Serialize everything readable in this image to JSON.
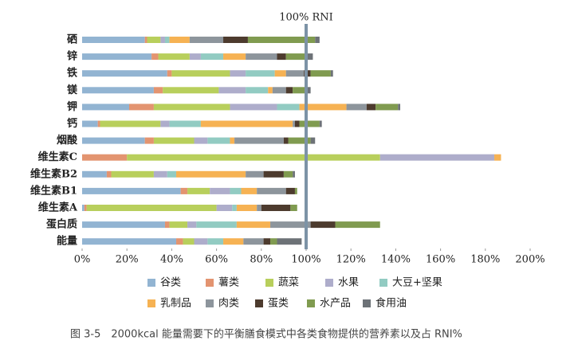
{
  "chart_data": {
    "type": "stacked-bar-horizontal",
    "caption": "图 3-5　2000kcal 能量需要下的平衡膳食模式中各类食物提供的营养素以及占 RNI%",
    "categories": [
      "硒",
      "锌",
      "铁",
      "镁",
      "钾",
      "钙",
      "烟酸",
      "维生素C",
      "维生素B2",
      "维生素B1",
      "维生素A",
      "蛋白质",
      "能量"
    ],
    "series": [
      {
        "name": "谷类",
        "color": "#92b4d2",
        "values": [
          28,
          31,
          38,
          32,
          21,
          7,
          28,
          0,
          11,
          44,
          1,
          37,
          42
        ]
      },
      {
        "name": "薯类",
        "color": "#e39470",
        "values": [
          1,
          3,
          2,
          4,
          11,
          1,
          4,
          20,
          2,
          3,
          1,
          2,
          3
        ]
      },
      {
        "name": "蔬菜",
        "color": "#b8cf5c",
        "values": [
          6,
          14,
          26,
          25,
          34,
          27,
          18,
          113,
          19,
          10,
          58,
          8,
          5
        ]
      },
      {
        "name": "水果",
        "color": "#aeadcb",
        "values": [
          2,
          5,
          7,
          12,
          21,
          4,
          6,
          51,
          6,
          9,
          7,
          4,
          6
        ]
      },
      {
        "name": "大豆+坚果",
        "color": "#92cbc2",
        "values": [
          2,
          10,
          13,
          10,
          10,
          14,
          10,
          0,
          4,
          5,
          2,
          18,
          7
        ]
      },
      {
        "name": "乳制品",
        "color": "#f6b253",
        "values": [
          9,
          10,
          5,
          2,
          21,
          41,
          2,
          3,
          31,
          7,
          9,
          15,
          9
        ]
      },
      {
        "name": "肉类",
        "color": "#8d959c",
        "values": [
          15,
          14,
          8,
          6,
          9,
          1,
          22,
          0,
          8,
          13,
          2,
          18,
          9
        ]
      },
      {
        "name": "蛋类",
        "color": "#4d3b2e",
        "values": [
          11,
          4,
          3,
          3,
          4,
          2,
          2,
          0,
          9,
          4,
          13,
          11,
          3
        ]
      },
      {
        "name": "水产品",
        "color": "#809b50",
        "values": [
          30,
          9,
          9,
          6,
          10,
          9,
          10,
          0,
          4,
          1,
          3,
          20,
          3
        ]
      },
      {
        "name": "食用油",
        "color": "#6d7277",
        "values": [
          2,
          3,
          1,
          2,
          1,
          1,
          2,
          0,
          1,
          0,
          0,
          0,
          11
        ]
      }
    ],
    "xlim": [
      0,
      200
    ],
    "xticks": [
      {
        "value": 0,
        "label": "0%"
      },
      {
        "value": 20,
        "label": "20%"
      },
      {
        "value": 40,
        "label": "40%"
      },
      {
        "value": 60,
        "label": "60%"
      },
      {
        "value": 80,
        "label": "80%"
      },
      {
        "value": 100,
        "label": "100%"
      },
      {
        "value": 120,
        "label": "120%"
      },
      {
        "value": 140,
        "label": "140%"
      },
      {
        "value": 160,
        "label": "160%"
      },
      {
        "value": 180,
        "label": "180%"
      },
      {
        "value": 200,
        "label": "200%"
      }
    ],
    "reference_line": {
      "value": 100,
      "label": "100% RNI",
      "color": "#7d93a6"
    }
  }
}
